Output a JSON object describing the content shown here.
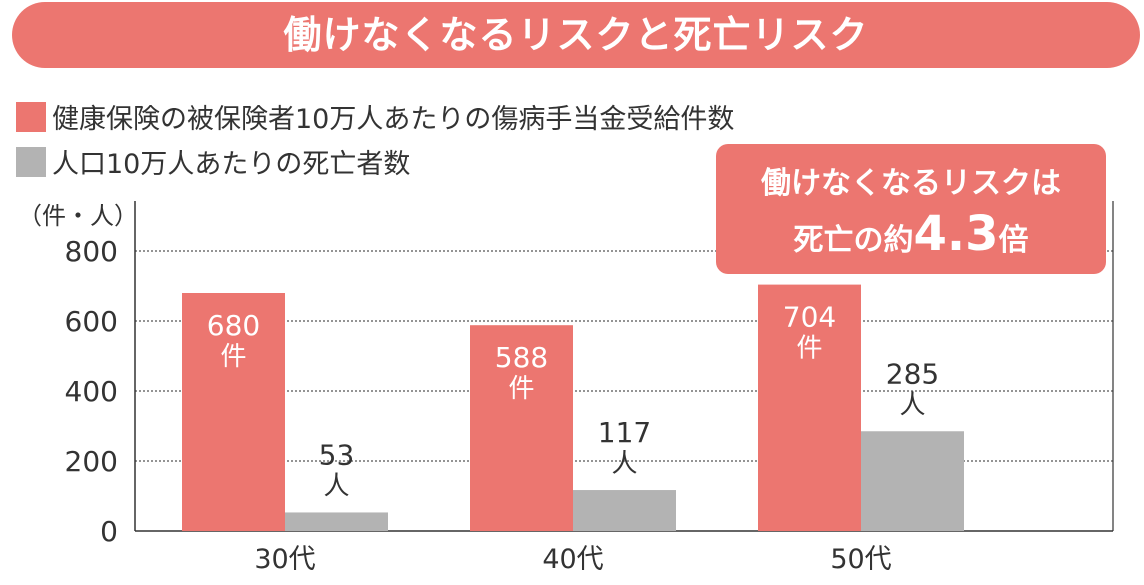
{
  "chart_data": {
    "type": "bar",
    "title": "働けなくなるリスクと死亡リスク",
    "categories": [
      "30代",
      "40代",
      "50代"
    ],
    "series": [
      {
        "name": "健康保険の被保険者10万人あたりの傷病手当金受給件数",
        "values": [
          680,
          588,
          704
        ],
        "unit_label": "件",
        "color": "#EC7670"
      },
      {
        "name": "人口10万人あたりの死亡者数",
        "values": [
          53,
          117,
          285
        ],
        "unit_label": "人",
        "color": "#B3B3B3"
      }
    ],
    "ylabel": "（件・人）",
    "ylim": [
      0,
      800
    ],
    "yticks": [
      0,
      200,
      400,
      600,
      800
    ],
    "grid": true,
    "legend": "top-left",
    "annotation": {
      "line1": "働けなくなるリスクは",
      "line2_prefix": "死亡の約",
      "line2_value": "4.3",
      "line2_suffix": "倍"
    }
  }
}
